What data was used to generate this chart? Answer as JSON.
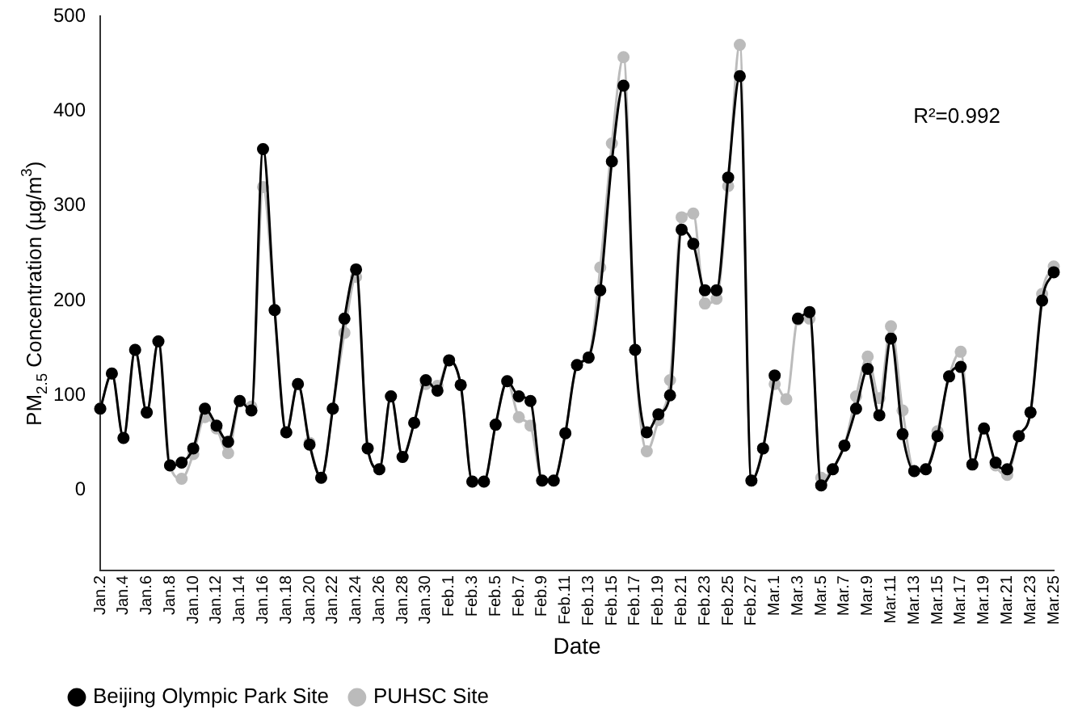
{
  "chart_data": {
    "type": "line",
    "xlabel": "Date",
    "ylabel": "PM$_{2.5}$ Concentration (µg/m$^{3}$)",
    "annotations": [
      "R²=0.992"
    ],
    "categories": [
      "Jan.2",
      null,
      "Jan.4",
      null,
      "Jan.6",
      null,
      "Jan.8",
      null,
      "Jan.10",
      null,
      "Jan.12",
      null,
      "Jan.14",
      null,
      "Jan.16",
      null,
      "Jan.18",
      null,
      "Jan.20",
      null,
      "Jan.22",
      null,
      "Jan.24",
      null,
      "Jan.26",
      null,
      "Jan.28",
      null,
      "Jan.30",
      null,
      "Feb.1",
      null,
      "Feb.3",
      null,
      "Feb.5",
      null,
      "Feb.7",
      null,
      "Feb.9",
      null,
      "Feb.11",
      null,
      "Feb.13",
      null,
      "Feb.15",
      null,
      "Feb.17",
      null,
      "Feb.19",
      null,
      "Feb.21",
      null,
      "Feb.23",
      null,
      "Feb.25",
      null,
      "Feb.27",
      null,
      "Mar.1",
      null,
      "Mar.3",
      null,
      "Mar.5",
      null,
      "Mar.7",
      null,
      "Mar.9",
      null,
      "Mar.11",
      null,
      "Mar.13",
      null,
      "Mar.15",
      null,
      "Mar.17",
      null,
      "Mar.19",
      null,
      "Mar.21",
      null,
      "Mar.23",
      null,
      "Mar.25"
    ],
    "series": [
      {
        "name": "Beijing Olympic Park Site",
        "color": "#000000",
        "values": [
          86,
          123,
          55,
          148,
          82,
          157,
          26,
          29,
          44,
          86,
          68,
          51,
          94,
          84,
          360,
          190,
          61,
          112,
          48,
          13,
          86,
          181,
          233,
          44,
          22,
          99,
          35,
          71,
          116,
          105,
          137,
          111,
          9,
          9,
          69,
          115,
          99,
          94,
          10,
          10,
          60,
          132,
          140,
          211,
          347,
          427,
          148,
          61,
          80,
          100,
          275,
          260,
          211,
          211,
          330,
          437,
          10,
          44,
          121,
          null,
          181,
          188,
          5,
          22,
          47,
          86,
          128,
          79,
          160,
          59,
          20,
          22,
          57,
          120,
          130,
          27,
          65,
          29,
          22,
          57,
          82,
          200,
          230
        ]
      },
      {
        "name": "PUHSC Site",
        "color": "#bbbbbb",
        "values": [
          86,
          123,
          55,
          148,
          82,
          157,
          26,
          12,
          38,
          77,
          65,
          39,
          94,
          88,
          320,
          190,
          61,
          112,
          50,
          13,
          86,
          166,
          225,
          44,
          22,
          99,
          35,
          71,
          112,
          110,
          137,
          111,
          9,
          9,
          69,
          115,
          77,
          68,
          10,
          10,
          60,
          132,
          140,
          235,
          366,
          457,
          148,
          41,
          74,
          116,
          288,
          292,
          197,
          202,
          321,
          470,
          10,
          44,
          112,
          96,
          180,
          181,
          13,
          22,
          47,
          99,
          141,
          97,
          173,
          84,
          20,
          22,
          62,
          120,
          146,
          27,
          65,
          26,
          16,
          57,
          82,
          207,
          236
        ]
      }
    ],
    "ylim": [
      -85,
      500
    ],
    "yticks": [
      0,
      100,
      200,
      300,
      400,
      500
    ],
    "grid": false,
    "legend": "bottom left",
    "marker": "circle",
    "line_style": "solid"
  }
}
